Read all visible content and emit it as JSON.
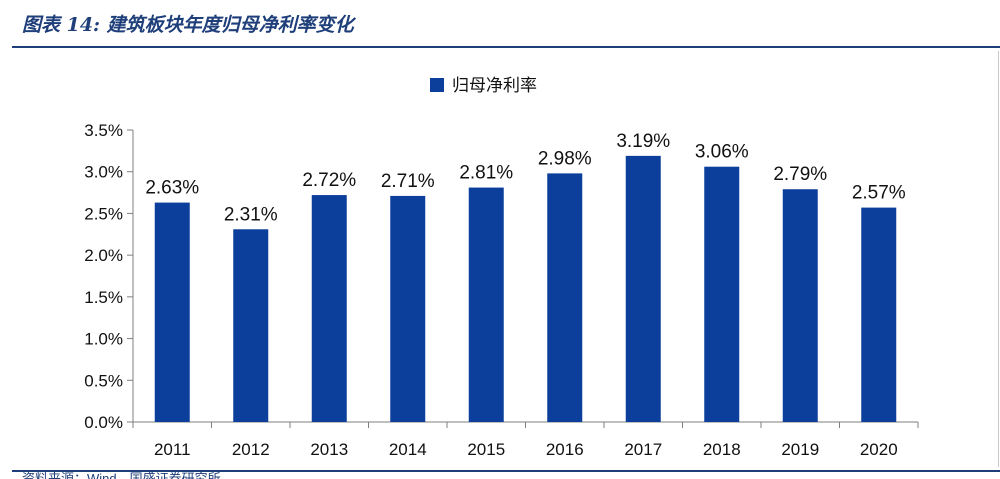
{
  "header": {
    "figure_title": "图表 14:  建筑板块年度归母净利率变化"
  },
  "footer": {
    "source": "资料来源：Wind，国盛证券研究所"
  },
  "colors": {
    "bar": "#0b3f9b",
    "title": "#1f3f7a",
    "axis": "#7f7f7f"
  },
  "chart_data": {
    "type": "bar",
    "categories": [
      "2011",
      "2012",
      "2013",
      "2014",
      "2015",
      "2016",
      "2017",
      "2018",
      "2019",
      "2020"
    ],
    "series": [
      {
        "name": "归母净利率",
        "values": [
          2.63,
          2.31,
          2.72,
          2.71,
          2.81,
          2.98,
          3.19,
          3.06,
          2.79,
          2.57
        ],
        "labels": [
          "2.63%",
          "2.31%",
          "2.72%",
          "2.71%",
          "2.81%",
          "2.98%",
          "3.19%",
          "3.06%",
          "2.79%",
          "2.57%"
        ]
      }
    ],
    "ylim": [
      0,
      3.5
    ],
    "yticks": [
      "0.0%",
      "0.5%",
      "1.0%",
      "1.5%",
      "2.0%",
      "2.5%",
      "3.0%",
      "3.5%"
    ],
    "ytick_values": [
      0,
      0.5,
      1.0,
      1.5,
      2.0,
      2.5,
      3.0,
      3.5
    ],
    "legend_position": "top-center",
    "grid": false
  }
}
